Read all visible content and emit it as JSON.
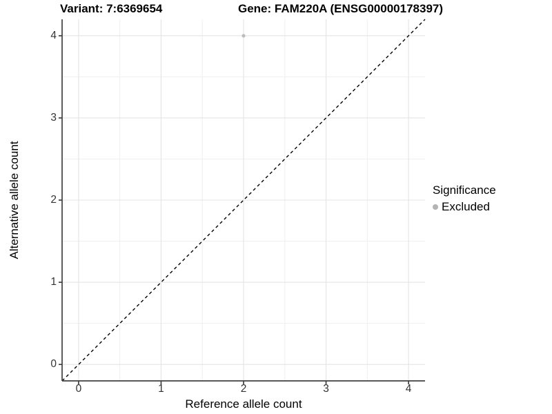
{
  "chart_data": {
    "type": "scatter",
    "titles": {
      "left": "Variant: 7:6369654",
      "right": "Gene: FAM220A (ENSG00000178397)"
    },
    "xlabel": "Reference allele count",
    "ylabel": "Alternative allele count",
    "xlim": [
      -0.2,
      4.2
    ],
    "ylim": [
      -0.2,
      4.2
    ],
    "x_ticks": [
      0,
      1,
      2,
      3,
      4
    ],
    "y_ticks": [
      0,
      1,
      2,
      3,
      4
    ],
    "x_minor_ticks": [
      0.5,
      1.5,
      2.5,
      3.5
    ],
    "y_minor_ticks": [
      0.5,
      1.5,
      2.5,
      3.5
    ],
    "grid": "major and minor gridlines on white panel, axis lines left and bottom only",
    "points": [
      {
        "x": 2,
        "y": 4,
        "series": "Excluded"
      }
    ],
    "series": [
      {
        "name": "Excluded",
        "color": "#bcbcbc",
        "point_radius": 2.6
      }
    ],
    "reference_line": {
      "kind": "identity y=x",
      "style": "dashed",
      "color": "#000000",
      "dash": [
        4.5,
        4
      ]
    },
    "legend": {
      "title": "Significance",
      "position": "right",
      "items": [
        {
          "label": "Excluded",
          "color": "#b3b3b3"
        }
      ]
    },
    "colors": {
      "background": "#ffffff",
      "grid_major": "#e4e4e4",
      "grid_minor": "#efefef",
      "axis_line": "#3f3f3f",
      "tick_label": "#333333",
      "title_text": "#000000"
    }
  }
}
